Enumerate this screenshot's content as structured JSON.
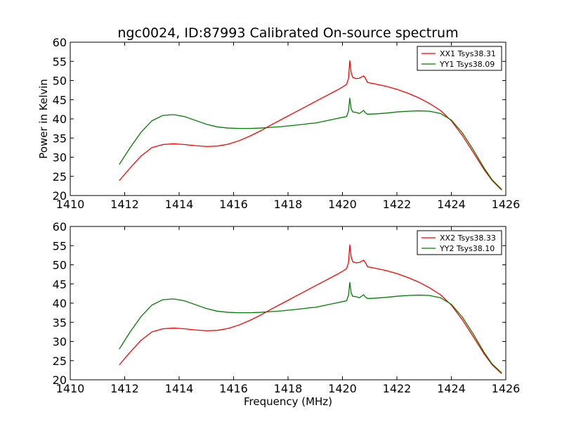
{
  "figure": {
    "title": "ngc0024, ID:87993 Calibrated On-source spectrum",
    "colors": {
      "red": "#ff0000",
      "green": "#007f00"
    }
  },
  "chart_data": [
    {
      "type": "line",
      "title": "ngc0024, ID:87993 Calibrated On-source spectrum",
      "xlabel": "",
      "ylabel": "Power in Kelvin",
      "xlim": [
        1410,
        1426
      ],
      "ylim": [
        20,
        60
      ],
      "xticks": [
        "1410",
        "1412",
        "1414",
        "1416",
        "1418",
        "1420",
        "1422",
        "1424",
        "1426"
      ],
      "yticks": [
        "20",
        "25",
        "30",
        "35",
        "40",
        "45",
        "50",
        "55",
        "60"
      ],
      "legend": "top-right",
      "grid": false,
      "series": [
        {
          "name": "XX1 Tsys38.31",
          "color": "#ff0000",
          "x": [
            1411.8,
            1412.2,
            1412.6,
            1413.0,
            1413.4,
            1413.8,
            1414.2,
            1414.6,
            1415.0,
            1415.4,
            1415.8,
            1416.2,
            1416.6,
            1417.0,
            1417.4,
            1417.8,
            1418.2,
            1418.6,
            1419.0,
            1419.4,
            1419.8,
            1420.0,
            1420.15,
            1420.22,
            1420.27,
            1420.32,
            1420.38,
            1420.5,
            1420.62,
            1420.72,
            1420.78,
            1420.84,
            1420.92,
            1421.2,
            1421.6,
            1422.0,
            1422.4,
            1422.8,
            1423.2,
            1423.6,
            1424.0,
            1424.4,
            1424.8,
            1425.2,
            1425.5,
            1425.85
          ],
          "values": [
            23.9,
            27.2,
            30.3,
            32.5,
            33.3,
            33.5,
            33.3,
            33.0,
            32.8,
            32.9,
            33.4,
            34.3,
            35.5,
            36.9,
            38.5,
            40.0,
            41.5,
            43.0,
            44.5,
            46.0,
            47.5,
            48.3,
            49.0,
            50.5,
            55.2,
            52.0,
            50.8,
            50.5,
            50.6,
            51.0,
            51.2,
            50.6,
            49.5,
            49.1,
            48.5,
            47.7,
            46.7,
            45.5,
            44.0,
            42.2,
            39.5,
            35.7,
            31.3,
            26.8,
            23.9,
            21.4
          ]
        },
        {
          "name": "YY1 Tsys38.09",
          "color": "#007f00",
          "x": [
            1411.8,
            1412.2,
            1412.6,
            1413.0,
            1413.4,
            1413.8,
            1414.2,
            1414.6,
            1415.0,
            1415.4,
            1415.8,
            1416.2,
            1416.6,
            1417.0,
            1417.4,
            1417.8,
            1418.2,
            1418.6,
            1418.8,
            1419.0,
            1419.4,
            1419.8,
            1420.0,
            1420.15,
            1420.22,
            1420.27,
            1420.32,
            1420.38,
            1420.5,
            1420.62,
            1420.72,
            1420.78,
            1420.84,
            1420.92,
            1421.2,
            1421.6,
            1422.0,
            1422.4,
            1422.8,
            1423.2,
            1423.6,
            1424.0,
            1424.4,
            1424.8,
            1425.2,
            1425.5,
            1425.85
          ],
          "values": [
            28.1,
            32.5,
            36.5,
            39.5,
            40.9,
            41.1,
            40.6,
            39.6,
            38.6,
            37.9,
            37.6,
            37.5,
            37.5,
            37.6,
            37.8,
            38.0,
            38.3,
            38.6,
            38.8,
            38.9,
            39.5,
            40.1,
            40.4,
            40.6,
            42.0,
            45.4,
            42.6,
            41.8,
            41.7,
            41.4,
            41.9,
            42.2,
            41.6,
            41.2,
            41.3,
            41.5,
            41.8,
            42.0,
            42.1,
            42.0,
            41.4,
            39.7,
            36.4,
            32.0,
            27.2,
            24.1,
            21.6
          ]
        }
      ]
    },
    {
      "type": "line",
      "title": "",
      "xlabel": "Frequency (MHz)",
      "ylabel": "",
      "xlim": [
        1410,
        1426
      ],
      "ylim": [
        20,
        60
      ],
      "xticks": [
        "1410",
        "1412",
        "1414",
        "1416",
        "1418",
        "1420",
        "1422",
        "1424",
        "1426"
      ],
      "yticks": [
        "20",
        "25",
        "30",
        "35",
        "40",
        "45",
        "50",
        "55",
        "60"
      ],
      "legend": "top-right",
      "grid": false,
      "series": [
        {
          "name": "XX2 Tsys38.33",
          "color": "#ff0000",
          "x": [
            1411.8,
            1412.2,
            1412.6,
            1413.0,
            1413.4,
            1413.8,
            1414.2,
            1414.6,
            1415.0,
            1415.4,
            1415.8,
            1416.2,
            1416.6,
            1417.0,
            1417.4,
            1417.8,
            1418.2,
            1418.6,
            1419.0,
            1419.4,
            1419.8,
            1420.0,
            1420.15,
            1420.22,
            1420.27,
            1420.32,
            1420.38,
            1420.5,
            1420.62,
            1420.72,
            1420.78,
            1420.84,
            1420.92,
            1421.2,
            1421.6,
            1422.0,
            1422.4,
            1422.8,
            1423.2,
            1423.6,
            1424.0,
            1424.4,
            1424.8,
            1425.2,
            1425.5,
            1425.85
          ],
          "values": [
            23.9,
            27.2,
            30.3,
            32.5,
            33.3,
            33.5,
            33.3,
            33.0,
            32.8,
            32.9,
            33.4,
            34.3,
            35.5,
            36.9,
            38.5,
            40.0,
            41.5,
            43.0,
            44.5,
            46.0,
            47.5,
            48.3,
            49.0,
            50.5,
            55.2,
            52.0,
            50.8,
            50.5,
            50.6,
            51.0,
            51.2,
            50.6,
            49.5,
            49.1,
            48.5,
            47.7,
            46.7,
            45.5,
            44.0,
            42.2,
            39.5,
            35.7,
            31.3,
            26.8,
            23.9,
            21.6
          ]
        },
        {
          "name": "YY2 Tsys38.10",
          "color": "#007f00",
          "x": [
            1411.8,
            1412.2,
            1412.6,
            1413.0,
            1413.4,
            1413.8,
            1414.2,
            1414.6,
            1415.0,
            1415.4,
            1415.8,
            1416.2,
            1416.6,
            1417.0,
            1417.4,
            1417.8,
            1418.2,
            1418.6,
            1418.8,
            1419.0,
            1419.4,
            1419.8,
            1420.0,
            1420.15,
            1420.22,
            1420.27,
            1420.32,
            1420.38,
            1420.5,
            1420.62,
            1420.72,
            1420.78,
            1420.84,
            1420.92,
            1421.2,
            1421.6,
            1422.0,
            1422.4,
            1422.8,
            1423.2,
            1423.6,
            1424.0,
            1424.4,
            1424.8,
            1425.2,
            1425.5,
            1425.85
          ],
          "values": [
            28.0,
            32.5,
            36.5,
            39.5,
            40.9,
            41.1,
            40.6,
            39.6,
            38.6,
            37.9,
            37.6,
            37.5,
            37.5,
            37.6,
            37.8,
            38.0,
            38.3,
            38.6,
            38.8,
            38.9,
            39.5,
            40.1,
            40.4,
            40.6,
            42.0,
            45.4,
            42.6,
            41.8,
            41.7,
            41.4,
            41.9,
            42.2,
            41.6,
            41.2,
            41.3,
            41.5,
            41.8,
            42.0,
            42.1,
            42.0,
            41.4,
            39.7,
            36.4,
            32.0,
            27.2,
            24.1,
            21.8
          ]
        }
      ]
    }
  ]
}
